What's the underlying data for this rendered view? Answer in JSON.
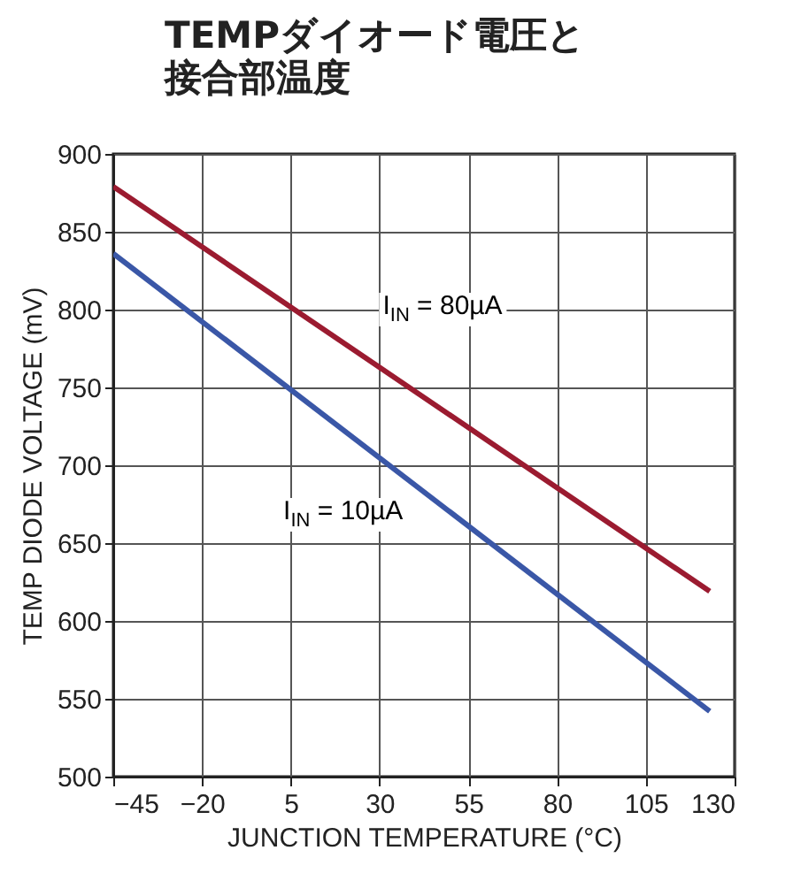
{
  "chart_data": {
    "type": "line",
    "title": "TEMPダイオード電圧と接合部温度",
    "xlabel": "JUNCTION TEMPERATURE (°C)",
    "ylabel": "TEMP DIODE VOLTAGE (mV)",
    "x": [
      -45,
      123
    ],
    "series": [
      {
        "color": "#9b1b30",
        "values": [
          879,
          619
        ]
      },
      {
        "color": "#3a57a7",
        "values": [
          836,
          542
        ]
      }
    ],
    "xlim": [
      -45,
      130
    ],
    "xticks": [
      -45,
      -20,
      5,
      30,
      55,
      80,
      105,
      130
    ],
    "ylim": [
      500,
      900
    ],
    "yticks": [
      500,
      550,
      600,
      650,
      700,
      750,
      800,
      850,
      900
    ],
    "grid": true,
    "legend": false,
    "annotations": [
      "I$_{IN}$ = 80µA",
      "I$_{IN}$ = 10µA"
    ]
  }
}
